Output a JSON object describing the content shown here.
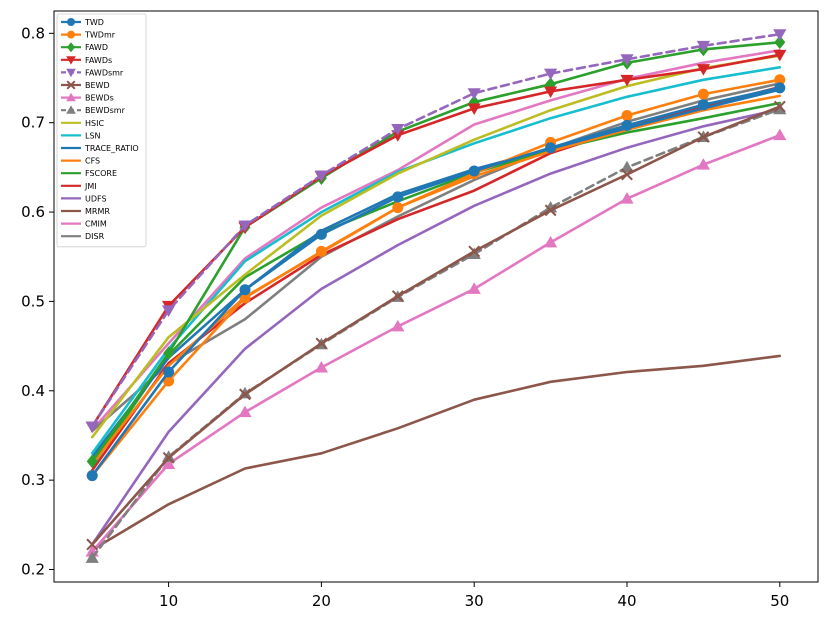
{
  "chart_data": {
    "type": "line",
    "title": "",
    "xlabel": "",
    "ylabel": "",
    "xlim": [
      2.5,
      52.5
    ],
    "ylim": [
      0.186,
      0.825
    ],
    "x_ticks": [
      10,
      20,
      30,
      40,
      50
    ],
    "x_tick_labels": [
      "10",
      "20",
      "30",
      "40",
      "50"
    ],
    "y_ticks": [
      0.2,
      0.3,
      0.4,
      0.5,
      0.6,
      0.7,
      0.8
    ],
    "y_tick_labels": [
      "0.2",
      "0.3",
      "0.4",
      "0.5",
      "0.6",
      "0.7",
      "0.8"
    ],
    "legend_position": "top-left",
    "x": [
      5,
      10,
      15,
      20,
      25,
      30,
      35,
      40,
      45,
      50
    ],
    "series": [
      {
        "name": "TWD",
        "color": "#1f77b4",
        "marker": "circle",
        "dashed": false,
        "values": [
          0.305,
          0.421,
          0.513,
          0.575,
          0.617,
          0.646,
          0.672,
          0.697,
          0.72,
          0.739
        ]
      },
      {
        "name": "TWDmr",
        "color": "#ff7f0e",
        "marker": "circle",
        "dashed": false,
        "values": [
          0.305,
          0.411,
          0.504,
          0.556,
          0.605,
          0.643,
          0.678,
          0.708,
          0.732,
          0.748
        ]
      },
      {
        "name": "FAWD",
        "color": "#2ca02c",
        "marker": "diamond",
        "dashed": false,
        "values": [
          0.321,
          0.442,
          0.583,
          0.638,
          0.69,
          0.723,
          0.743,
          0.767,
          0.782,
          0.79
        ]
      },
      {
        "name": "FAWDs",
        "color": "#d62728",
        "marker": "triangle-down",
        "dashed": false,
        "values": [
          0.36,
          0.495,
          0.583,
          0.64,
          0.686,
          0.716,
          0.735,
          0.748,
          0.76,
          0.776
        ]
      },
      {
        "name": "FAWDsmr",
        "color": "#9467bd",
        "marker": "triangle-down",
        "dashed": true,
        "values": [
          0.36,
          0.49,
          0.585,
          0.641,
          0.693,
          0.733,
          0.755,
          0.771,
          0.786,
          0.799
        ]
      },
      {
        "name": "BEWD",
        "color": "#8c564b",
        "marker": "x",
        "dashed": false,
        "values": [
          0.228,
          0.325,
          0.396,
          0.453,
          0.506,
          0.556,
          0.602,
          0.642,
          0.684,
          0.718
        ]
      },
      {
        "name": "BEWDs",
        "color": "#e377c2",
        "marker": "triangle-up",
        "dashed": false,
        "values": [
          0.22,
          0.318,
          0.376,
          0.426,
          0.472,
          0.514,
          0.566,
          0.615,
          0.653,
          0.686
        ]
      },
      {
        "name": "BEWDsmr",
        "color": "#7f7f7f",
        "marker": "triangle-up",
        "dashed": true,
        "values": [
          0.213,
          0.326,
          0.397,
          0.452,
          0.505,
          0.553,
          0.605,
          0.65,
          0.684,
          0.715
        ]
      },
      {
        "name": "HSIC",
        "color": "#bcbd22",
        "marker": "none",
        "dashed": false,
        "values": [
          0.348,
          0.46,
          0.53,
          0.596,
          0.643,
          0.681,
          0.714,
          0.741,
          0.761,
          0.775
        ]
      },
      {
        "name": "LSN",
        "color": "#17becf",
        "marker": "none",
        "dashed": false,
        "values": [
          0.33,
          0.447,
          0.545,
          0.6,
          0.645,
          0.677,
          0.705,
          0.729,
          0.748,
          0.762
        ]
      },
      {
        "name": "TRACE_RATIO",
        "color": "#1f77b4",
        "marker": "none",
        "dashed": false,
        "values": [
          0.326,
          0.437,
          0.513,
          0.579,
          0.62,
          0.648,
          0.671,
          0.694,
          0.716,
          0.737
        ]
      },
      {
        "name": "CFS",
        "color": "#ff7f0e",
        "marker": "none",
        "dashed": false,
        "values": [
          0.318,
          0.428,
          0.505,
          0.555,
          0.605,
          0.64,
          0.668,
          0.692,
          0.714,
          0.73
        ]
      },
      {
        "name": "FSCORE",
        "color": "#2ca02c",
        "marker": "none",
        "dashed": false,
        "values": [
          0.316,
          0.44,
          0.527,
          0.577,
          0.612,
          0.644,
          0.669,
          0.689,
          0.705,
          0.722
        ]
      },
      {
        "name": "JMI",
        "color": "#d62728",
        "marker": "none",
        "dashed": false,
        "values": [
          0.311,
          0.431,
          0.498,
          0.552,
          0.592,
          0.624,
          0.666,
          0.694,
          0.718,
          0.74
        ]
      },
      {
        "name": "UDFS",
        "color": "#9467bd",
        "marker": "none",
        "dashed": false,
        "values": [
          0.228,
          0.354,
          0.447,
          0.514,
          0.563,
          0.607,
          0.643,
          0.672,
          0.696,
          0.715
        ]
      },
      {
        "name": "MRMR",
        "color": "#8c564b",
        "marker": "none",
        "dashed": false,
        "values": [
          0.222,
          0.273,
          0.313,
          0.33,
          0.358,
          0.39,
          0.41,
          0.421,
          0.428,
          0.439
        ]
      },
      {
        "name": "CMIM",
        "color": "#e377c2",
        "marker": "none",
        "dashed": false,
        "values": [
          0.356,
          0.453,
          0.548,
          0.605,
          0.647,
          0.698,
          0.725,
          0.749,
          0.767,
          0.781
        ]
      },
      {
        "name": "DISR",
        "color": "#7f7f7f",
        "marker": "none",
        "dashed": false,
        "values": [
          0.355,
          0.43,
          0.48,
          0.55,
          0.595,
          0.636,
          0.671,
          0.701,
          0.725,
          0.744
        ]
      }
    ]
  }
}
